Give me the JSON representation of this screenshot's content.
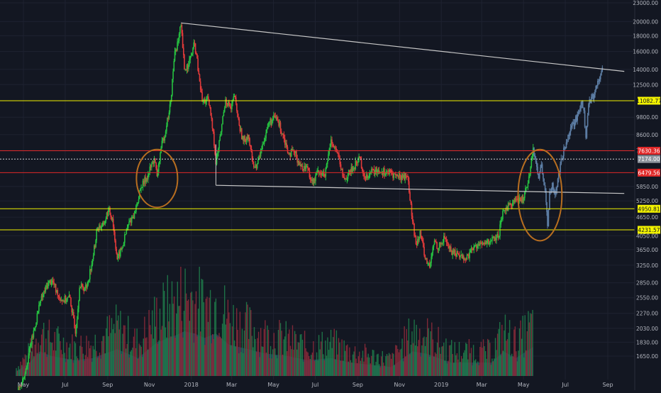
{
  "chart_data": {
    "type": "candlestick",
    "scale": "log",
    "colors": {
      "background": "#131722",
      "grid": "#1e2230",
      "axis_text": "#b2b5be",
      "up": "#26c040",
      "down": "#e03a3a",
      "projection": "#5d7ea5",
      "trendline": "#c8c8c8",
      "support_line": "#f2f200",
      "resistance_line": "#e02828",
      "current_line": "#cfd2d6",
      "ellipse": "#b86e20",
      "volume_up": "#1f7a4a",
      "volume_down": "#8a2a3a",
      "volume_area": "#2a4a6a"
    },
    "y_ticks": [
      "23000.00",
      "20000.00",
      "18000.00",
      "16000.00",
      "14000.00",
      "12500.00",
      "9800.00",
      "8600.00",
      "7650.00",
      "5850.00",
      "5250.00",
      "4650.00",
      "4050.00",
      "3650.00",
      "3250.00",
      "2850.00",
      "2550.00",
      "2270.00",
      "2030.00",
      "1830.00",
      "1650.00"
    ],
    "x_ticks": [
      "May",
      "Jul",
      "Sep",
      "Nov",
      "2018",
      "Mar",
      "May",
      "Jul",
      "Sep",
      "Nov",
      "2019",
      "Mar",
      "May",
      "Jul",
      "Sep"
    ],
    "price_lines": [
      {
        "label": "11082.77",
        "value": 11082.77,
        "kind": "support"
      },
      {
        "label": "7630.36",
        "value": 7630.36,
        "kind": "resistance"
      },
      {
        "label": "7174.00",
        "value": 7174.0,
        "kind": "current"
      },
      {
        "label": "6479.56",
        "value": 6479.56,
        "kind": "resistance"
      },
      {
        "label": "4950.81",
        "value": 4950.81,
        "kind": "support"
      },
      {
        "label": "4231.57",
        "value": 4231.57,
        "kind": "support"
      }
    ],
    "trendlines": [
      {
        "from": [
          "2017-12-17",
          19800
        ],
        "to": [
          "2019-09-25",
          13800
        ]
      },
      {
        "from": [
          "2018-02-06",
          5900
        ],
        "to": [
          "2019-09-25",
          5550
        ]
      }
    ],
    "ellipses": [
      {
        "center": [
          "2017-11-12",
          6850
        ],
        "x_radius_days": 30,
        "y_top": 7700,
        "y_bottom": 5000
      },
      {
        "center": [
          "2019-05-25",
          5850
        ],
        "x_radius_days": 32,
        "y_top": 7700,
        "y_bottom": 3900
      }
    ],
    "series": [
      {
        "name": "",
        "style": "candles",
        "points": [
          [
            "2017-04-20",
            1220
          ],
          [
            "2017-05-01",
            1400
          ],
          [
            "2017-05-12",
            1800
          ],
          [
            "2017-05-25",
            2450
          ],
          [
            "2017-06-06",
            2850
          ],
          [
            "2017-06-12",
            2900
          ],
          [
            "2017-06-20",
            2600
          ],
          [
            "2017-06-28",
            2500
          ],
          [
            "2017-07-08",
            2550
          ],
          [
            "2017-07-16",
            1950
          ],
          [
            "2017-07-22",
            2750
          ],
          [
            "2017-08-01",
            2750
          ],
          [
            "2017-08-10",
            3400
          ],
          [
            "2017-08-17",
            4300
          ],
          [
            "2017-08-26",
            4400
          ],
          [
            "2017-09-02",
            4900
          ],
          [
            "2017-09-08",
            4600
          ],
          [
            "2017-09-15",
            3400
          ],
          [
            "2017-09-22",
            3700
          ],
          [
            "2017-10-01",
            4400
          ],
          [
            "2017-10-10",
            4800
          ],
          [
            "2017-10-20",
            5800
          ],
          [
            "2017-10-30",
            6400
          ],
          [
            "2017-11-08",
            7200
          ],
          [
            "2017-11-12",
            6300
          ],
          [
            "2017-11-18",
            7800
          ],
          [
            "2017-11-26",
            9200
          ],
          [
            "2017-12-02",
            11000
          ],
          [
            "2017-12-08",
            16000
          ],
          [
            "2017-12-13",
            17300
          ],
          [
            "2017-12-17",
            19500
          ],
          [
            "2017-12-22",
            14000
          ],
          [
            "2017-12-28",
            14500
          ],
          [
            "2018-01-06",
            17000
          ],
          [
            "2018-01-12",
            13500
          ],
          [
            "2018-01-17",
            11000
          ],
          [
            "2018-01-26",
            11200
          ],
          [
            "2018-02-02",
            8800
          ],
          [
            "2018-02-06",
            6900
          ],
          [
            "2018-02-12",
            8500
          ],
          [
            "2018-02-20",
            11200
          ],
          [
            "2018-02-28",
            10400
          ],
          [
            "2018-03-05",
            11500
          ],
          [
            "2018-03-12",
            9200
          ],
          [
            "2018-03-18",
            8200
          ],
          [
            "2018-03-25",
            8600
          ],
          [
            "2018-04-01",
            6900
          ],
          [
            "2018-04-06",
            6700
          ],
          [
            "2018-04-15",
            8000
          ],
          [
            "2018-04-24",
            9400
          ],
          [
            "2018-05-05",
            9800
          ],
          [
            "2018-05-15",
            8600
          ],
          [
            "2018-05-23",
            7500
          ],
          [
            "2018-06-01",
            7500
          ],
          [
            "2018-06-10",
            6800
          ],
          [
            "2018-06-20",
            6700
          ],
          [
            "2018-06-28",
            5950
          ],
          [
            "2018-07-05",
            6600
          ],
          [
            "2018-07-15",
            6300
          ],
          [
            "2018-07-24",
            8300
          ],
          [
            "2018-08-02",
            7500
          ],
          [
            "2018-08-10",
            6300
          ],
          [
            "2018-08-14",
            6200
          ],
          [
            "2018-08-25",
            6700
          ],
          [
            "2018-09-04",
            7300
          ],
          [
            "2018-09-10",
            6300
          ],
          [
            "2018-09-20",
            6500
          ],
          [
            "2018-10-01",
            6600
          ],
          [
            "2018-10-15",
            6500
          ],
          [
            "2018-10-30",
            6300
          ],
          [
            "2018-11-13",
            6300
          ],
          [
            "2018-11-15",
            5600
          ],
          [
            "2018-11-20",
            4500
          ],
          [
            "2018-11-25",
            3800
          ],
          [
            "2018-12-01",
            4200
          ],
          [
            "2018-12-07",
            3500
          ],
          [
            "2018-12-15",
            3200
          ],
          [
            "2018-12-22",
            3900
          ],
          [
            "2018-12-28",
            3700
          ],
          [
            "2019-01-06",
            4000
          ],
          [
            "2019-01-15",
            3600
          ],
          [
            "2019-01-25",
            3550
          ],
          [
            "2019-02-05",
            3400
          ],
          [
            "2019-02-15",
            3650
          ],
          [
            "2019-02-24",
            3800
          ],
          [
            "2019-03-05",
            3800
          ],
          [
            "2019-03-15",
            3900
          ],
          [
            "2019-03-25",
            4000
          ],
          [
            "2019-04-02",
            4900
          ],
          [
            "2019-04-10",
            5100
          ],
          [
            "2019-04-20",
            5300
          ],
          [
            "2019-04-28",
            5200
          ],
          [
            "2019-05-05",
            5800
          ],
          [
            "2019-05-10",
            6400
          ],
          [
            "2019-05-15",
            7800
          ]
        ]
      },
      {
        "name": "",
        "style": "projection",
        "points": [
          [
            "2019-05-15",
            7800
          ],
          [
            "2019-05-19",
            7000
          ],
          [
            "2019-05-23",
            6200
          ],
          [
            "2019-05-27",
            6900
          ],
          [
            "2019-05-31",
            5900
          ],
          [
            "2019-06-03",
            5200
          ],
          [
            "2019-06-05",
            4350
          ],
          [
            "2019-06-08",
            5600
          ],
          [
            "2019-06-12",
            6000
          ],
          [
            "2019-06-16",
            5500
          ],
          [
            "2019-06-20",
            6200
          ],
          [
            "2019-06-25",
            7200
          ],
          [
            "2019-06-30",
            7800
          ],
          [
            "2019-07-05",
            8600
          ],
          [
            "2019-07-10",
            9200
          ],
          [
            "2019-07-15",
            9400
          ],
          [
            "2019-07-20",
            10200
          ],
          [
            "2019-07-25",
            11100
          ],
          [
            "2019-07-28",
            10300
          ],
          [
            "2019-07-31",
            8400
          ],
          [
            "2019-08-04",
            10800
          ],
          [
            "2019-08-08",
            11400
          ],
          [
            "2019-08-12",
            11600
          ],
          [
            "2019-08-16",
            12400
          ],
          [
            "2019-08-20",
            13000
          ],
          [
            "2019-08-24",
            14200
          ]
        ]
      }
    ],
    "volume": {
      "points": [
        [
          "2017-04-20",
          0.1
        ],
        [
          "2017-05-10",
          0.3
        ],
        [
          "2017-05-25",
          0.55
        ],
        [
          "2017-06-10",
          0.45
        ],
        [
          "2017-07-15",
          0.35
        ],
        [
          "2017-08-10",
          0.4
        ],
        [
          "2017-09-15",
          0.6
        ],
        [
          "2017-10-15",
          0.4
        ],
        [
          "2017-11-12",
          0.75
        ],
        [
          "2017-12-08",
          0.9
        ],
        [
          "2017-12-22",
          1.0
        ],
        [
          "2018-01-06",
          0.95
        ],
        [
          "2018-01-20",
          0.85
        ],
        [
          "2018-02-06",
          0.95
        ],
        [
          "2018-02-25",
          0.7
        ],
        [
          "2018-03-25",
          0.6
        ],
        [
          "2018-04-20",
          0.5
        ],
        [
          "2018-05-20",
          0.45
        ],
        [
          "2018-06-20",
          0.35
        ],
        [
          "2018-07-24",
          0.4
        ],
        [
          "2018-08-20",
          0.3
        ],
        [
          "2018-09-20",
          0.25
        ],
        [
          "2018-10-20",
          0.2
        ],
        [
          "2018-11-20",
          0.55
        ],
        [
          "2018-12-10",
          0.5
        ],
        [
          "2019-01-15",
          0.3
        ],
        [
          "2019-02-15",
          0.3
        ],
        [
          "2019-03-15",
          0.3
        ],
        [
          "2019-04-02",
          0.55
        ],
        [
          "2019-04-20",
          0.4
        ],
        [
          "2019-05-15",
          0.65
        ]
      ]
    }
  }
}
